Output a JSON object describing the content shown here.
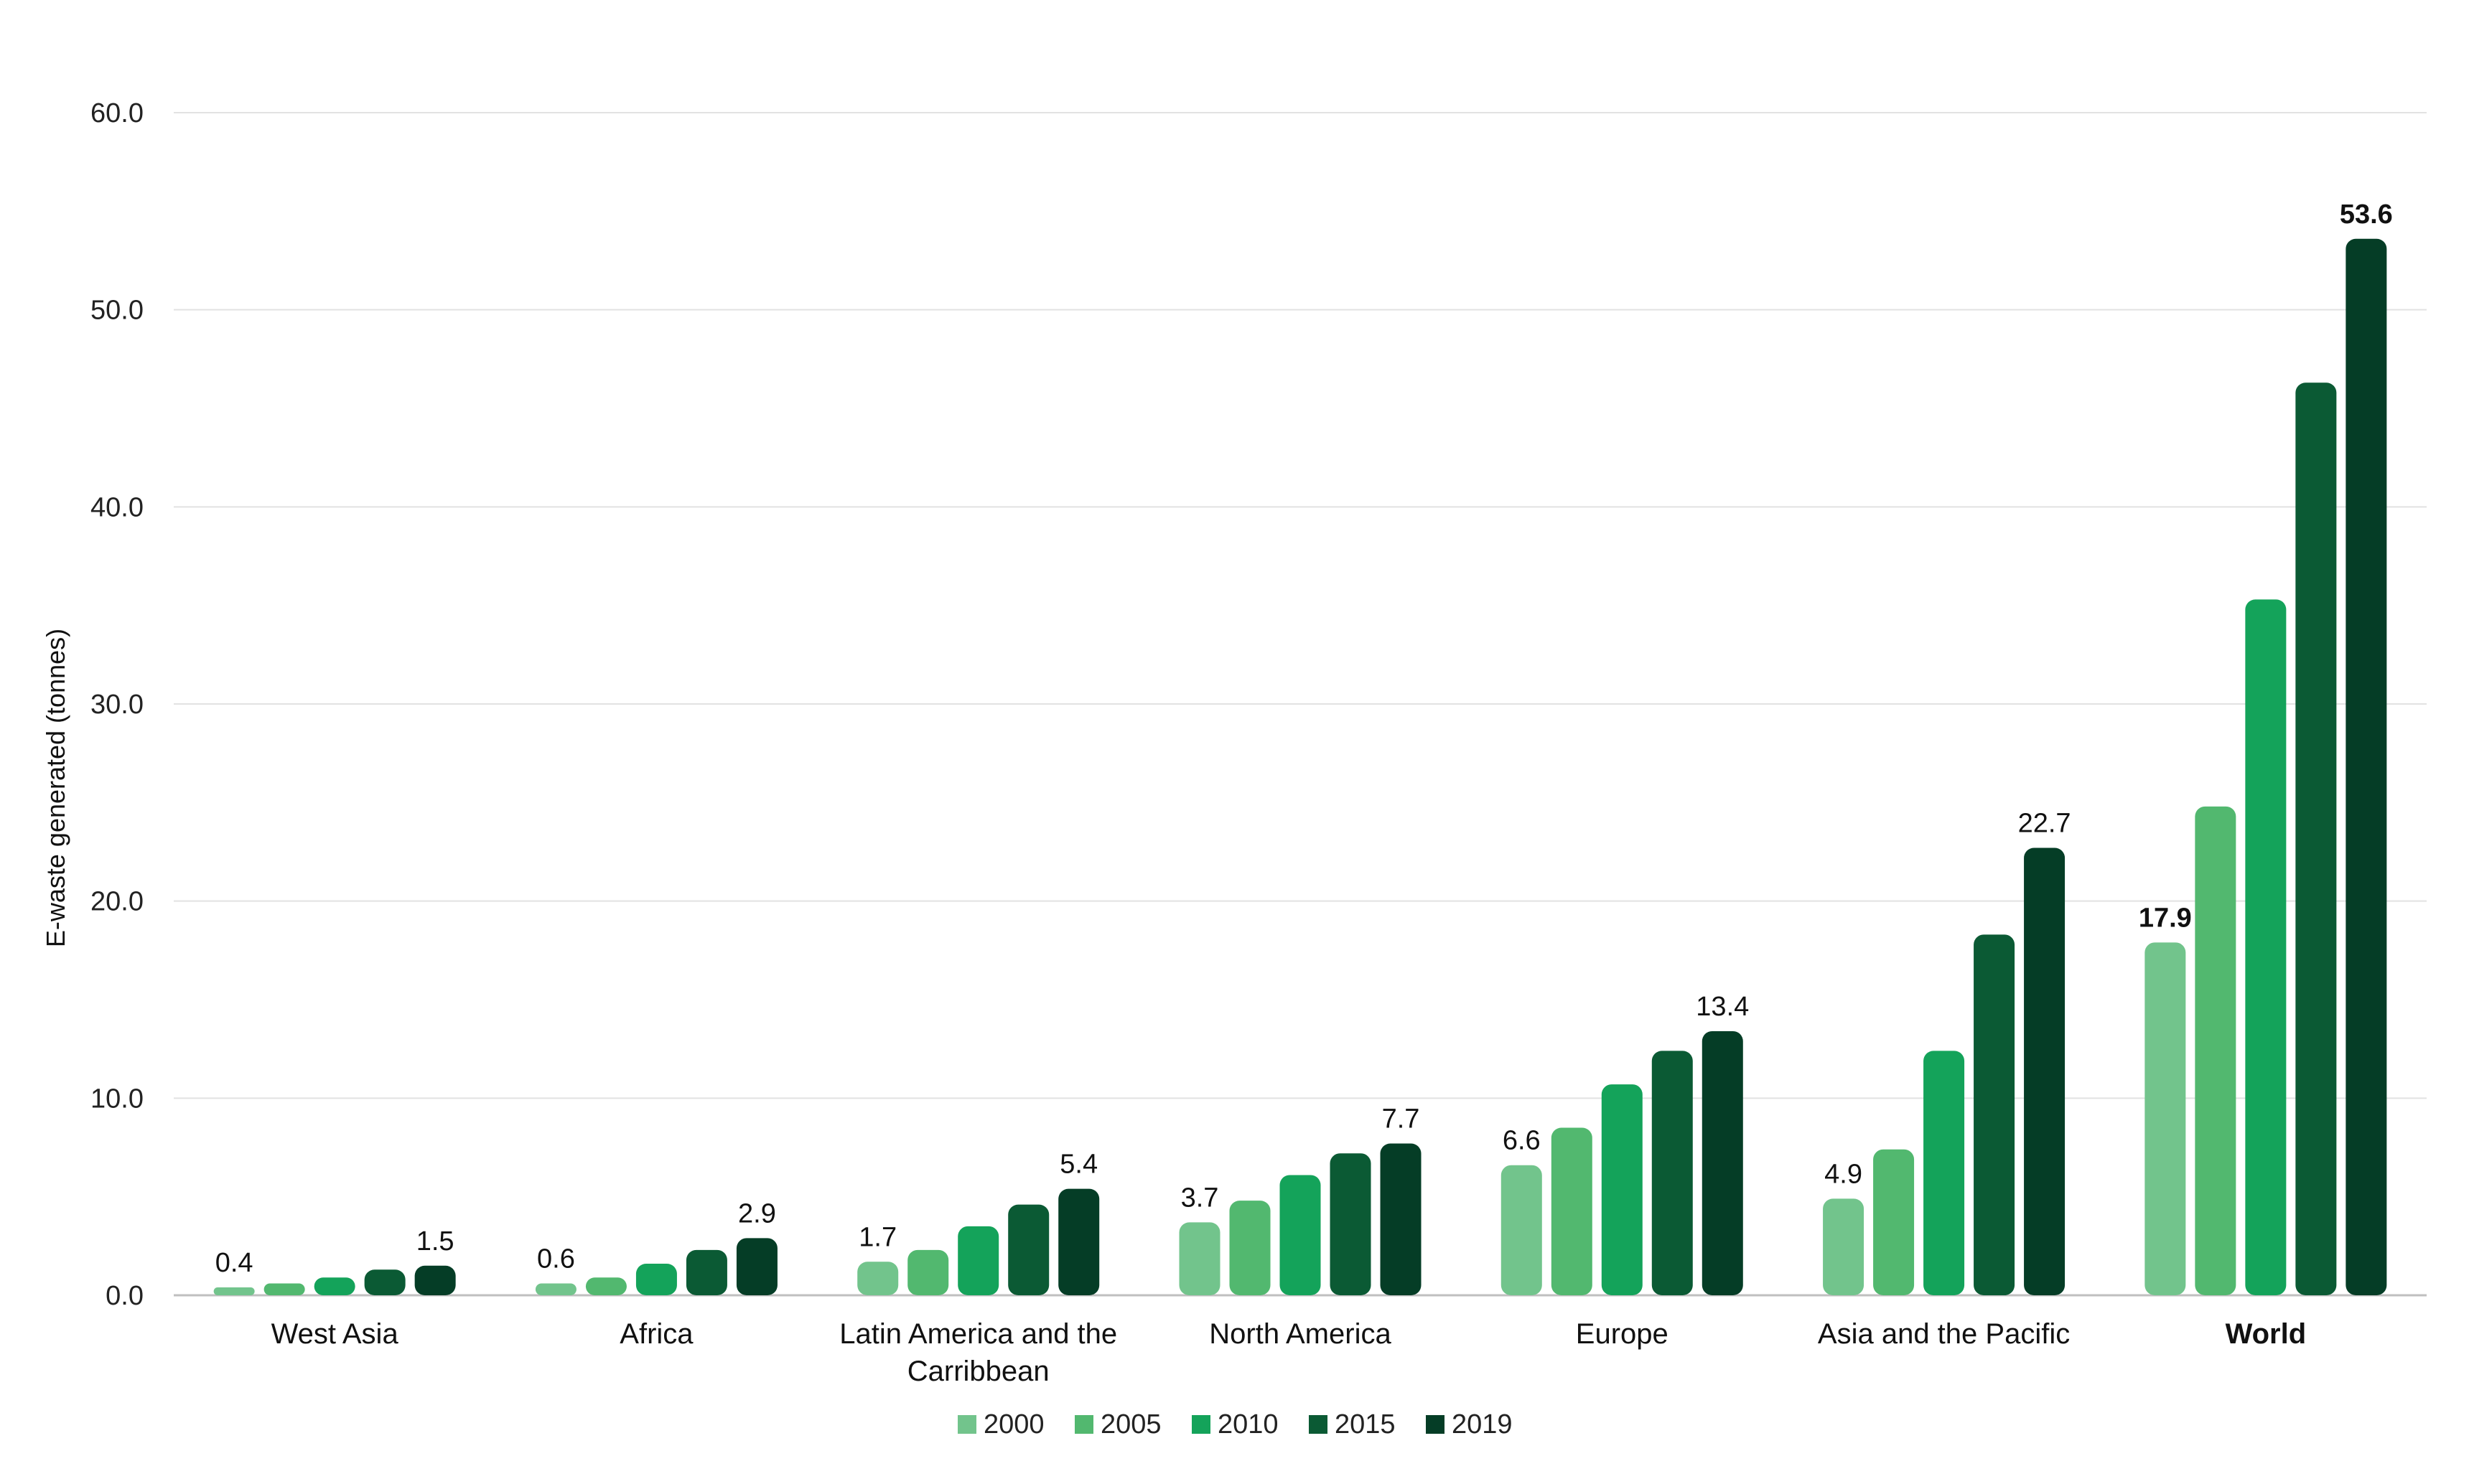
{
  "chart_data": {
    "type": "bar",
    "ylabel": "E-waste generated (tonnes)",
    "ylim": [
      0,
      60
    ],
    "yticks": [
      "0.0",
      "10.0",
      "20.0",
      "30.0",
      "40.0",
      "50.0",
      "60.0"
    ],
    "grid": true,
    "legend_position": "bottom",
    "categories": [
      {
        "label": [
          "West Asia"
        ],
        "bold": false
      },
      {
        "label": [
          "Africa"
        ],
        "bold": false
      },
      {
        "label": [
          "Latin America and the",
          "Carribbean"
        ],
        "bold": false
      },
      {
        "label": [
          "North America"
        ],
        "bold": false
      },
      {
        "label": [
          "Europe"
        ],
        "bold": false
      },
      {
        "label": [
          "Asia and the Pacific"
        ],
        "bold": false
      },
      {
        "label": [
          "World"
        ],
        "bold": true
      }
    ],
    "series": [
      {
        "name": "2000",
        "color": "#72c48c",
        "values": [
          0.4,
          0.6,
          1.7,
          3.7,
          6.6,
          4.9,
          17.9
        ]
      },
      {
        "name": "2005",
        "color": "#52b86f",
        "values": [
          0.6,
          0.9,
          2.3,
          4.8,
          8.5,
          7.4,
          24.8
        ]
      },
      {
        "name": "2010",
        "color": "#14a35a",
        "values": [
          0.9,
          1.6,
          3.5,
          6.1,
          10.7,
          12.4,
          35.3
        ]
      },
      {
        "name": "2015",
        "color": "#0b5a34",
        "values": [
          1.3,
          2.3,
          4.6,
          7.2,
          12.4,
          18.3,
          46.3
        ]
      },
      {
        "name": "2019",
        "color": "#053d26",
        "values": [
          1.5,
          2.9,
          5.4,
          7.7,
          13.4,
          22.7,
          53.6
        ]
      }
    ],
    "data_labels": [
      {
        "category": 0,
        "series": 0,
        "text": "0.4",
        "bold": false
      },
      {
        "category": 0,
        "series": 4,
        "text": "1.5",
        "bold": false
      },
      {
        "category": 1,
        "series": 0,
        "text": "0.6",
        "bold": false
      },
      {
        "category": 1,
        "series": 4,
        "text": "2.9",
        "bold": false
      },
      {
        "category": 2,
        "series": 0,
        "text": "1.7",
        "bold": false
      },
      {
        "category": 2,
        "series": 4,
        "text": "5.4",
        "bold": false
      },
      {
        "category": 3,
        "series": 0,
        "text": "3.7",
        "bold": false
      },
      {
        "category": 3,
        "series": 4,
        "text": "7.7",
        "bold": false
      },
      {
        "category": 4,
        "series": 0,
        "text": "6.6",
        "bold": false
      },
      {
        "category": 4,
        "series": 4,
        "text": "13.4",
        "bold": false
      },
      {
        "category": 5,
        "series": 0,
        "text": "4.9",
        "bold": false
      },
      {
        "category": 5,
        "series": 4,
        "text": "22.7",
        "bold": false
      },
      {
        "category": 6,
        "series": 0,
        "text": "17.9",
        "bold": true
      },
      {
        "category": 6,
        "series": 4,
        "text": "53.6",
        "bold": true
      }
    ]
  }
}
